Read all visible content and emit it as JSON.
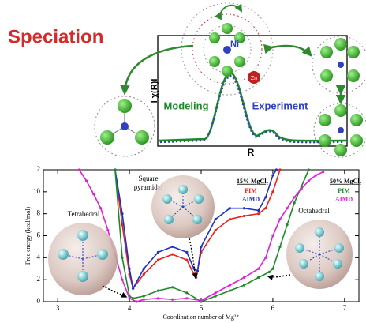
{
  "diagram": {
    "title": "Speciation",
    "y_label": "I χ(R)I",
    "x_label": "R",
    "modeling": "Modeling",
    "experiment": "Experiment",
    "center_atom": "Ni",
    "guest_atom": "Zn"
  },
  "chart_data": {
    "type": "line",
    "x_label": "Coordination number of Mg²⁺",
    "y_label": "Free energy (kcal/mol)",
    "xlim": [
      2.8,
      7.2
    ],
    "xticks": [
      3,
      4,
      5,
      6,
      7
    ],
    "ylim": [
      0,
      12
    ],
    "yticks": [
      0,
      2,
      4,
      6,
      8,
      10,
      12
    ],
    "legend_groups": [
      "15% MgCl₂",
      "50% MgCl₂"
    ],
    "annotations": [
      "Tetrahedral",
      "Square",
      "pyramidal",
      "Octahedral"
    ],
    "series": [
      {
        "name": "PIM",
        "group": 0,
        "color": "#e8201e",
        "x": [
          3.8,
          3.9,
          4.0,
          4.05,
          4.2,
          4.4,
          4.6,
          4.8,
          4.9,
          4.93,
          5.0,
          5.2,
          5.4,
          5.6,
          5.8,
          5.9,
          6.0,
          6.1
        ],
        "values": [
          12,
          7,
          2.5,
          1.2,
          2.5,
          3.8,
          4.3,
          3.8,
          2.5,
          2.2,
          4.5,
          6.5,
          7.5,
          7.8,
          8,
          8.5,
          10,
          12
        ]
      },
      {
        "name": "AIMD",
        "group": 0,
        "color": "#2030c8",
        "x": [
          3.8,
          3.9,
          4.0,
          4.05,
          4.2,
          4.4,
          4.6,
          4.8,
          4.9,
          4.95,
          5.0,
          5.2,
          5.4,
          5.6,
          5.8,
          5.9,
          6.0,
          6.05
        ],
        "values": [
          12,
          8,
          3,
          1.2,
          3,
          4.5,
          5,
          4.5,
          3,
          2.8,
          5,
          7.5,
          8.5,
          8.5,
          8.3,
          9.5,
          11.5,
          12
        ]
      },
      {
        "name": "PIM",
        "group": 1,
        "color": "#1c8a2a",
        "x": [
          3.8,
          3.9,
          4.0,
          4.05,
          4.2,
          4.4,
          4.6,
          4.8,
          5.0,
          5.2,
          5.4,
          5.6,
          5.8,
          5.95,
          6.0,
          6.1,
          6.2,
          6.3,
          6.4,
          6.5
        ],
        "values": [
          12,
          4,
          0.5,
          0.3,
          0.5,
          1,
          1.3,
          0.8,
          0,
          0.5,
          1,
          1.5,
          2.2,
          2.7,
          3,
          5,
          7,
          9,
          10.5,
          12
        ]
      },
      {
        "name": "AIMD",
        "group": 1,
        "color": "#e020d8",
        "x": [
          3.3,
          3.4,
          3.5,
          3.6,
          3.7,
          3.8,
          3.9,
          4.0,
          4.1,
          4.2,
          4.4,
          4.6,
          4.8,
          5.0,
          5.2,
          5.4,
          5.6,
          5.8,
          5.9,
          6.0,
          6.1,
          6.2,
          6.3,
          6.4,
          6.5,
          6.6,
          6.7
        ],
        "values": [
          12,
          11,
          9.8,
          8.5,
          6.5,
          4.3,
          2,
          0.3,
          0,
          0.2,
          0.3,
          0.2,
          0.3,
          0.1,
          0.8,
          1.5,
          2.2,
          3,
          4,
          6,
          7.5,
          8.5,
          9.5,
          10.3,
          11,
          11.5,
          11.8
        ]
      }
    ]
  }
}
